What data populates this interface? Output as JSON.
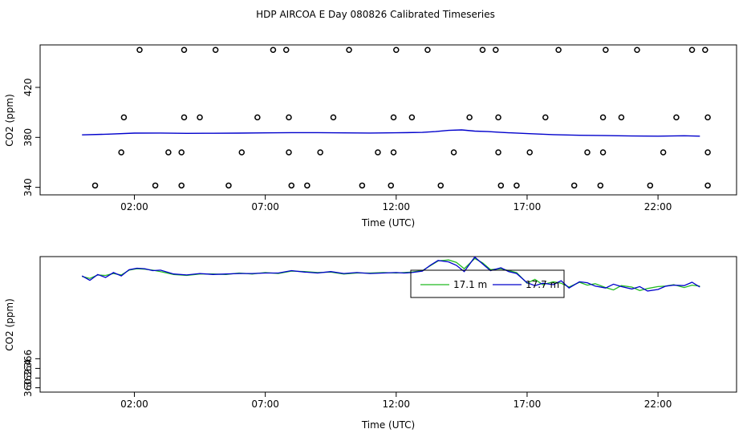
{
  "title": "HDP AIRCOA E  Day 080826  Calibrated Timeseries",
  "colors": {
    "green": "#22bb22",
    "blue": "#0000cc",
    "points": "#000000"
  },
  "chart_data": [
    {
      "type": "scatter",
      "xlabel": "Time (UTC)",
      "ylabel": "CO2 (ppm)",
      "x_unit": "hours UTC",
      "xlim": [
        -1.6,
        25.0
      ],
      "ylim": [
        334,
        454
      ],
      "xticks": [
        {
          "v": 2,
          "label": "02:00"
        },
        {
          "v": 7,
          "label": "07:00"
        },
        {
          "v": 12,
          "label": "12:00"
        },
        {
          "v": 17,
          "label": "17:00"
        },
        {
          "v": 22,
          "label": "22:00"
        }
      ],
      "yticks": [
        {
          "v": 340,
          "label": "340"
        },
        {
          "v": 380,
          "label": "380"
        },
        {
          "v": 420,
          "label": "420"
        }
      ],
      "grid": false,
      "line_series": {
        "name": "",
        "color": "#0000cc",
        "x": [
          0,
          1,
          2,
          3,
          4,
          5,
          6,
          7,
          8,
          9,
          10,
          11,
          12,
          13,
          13.5,
          14,
          14.5,
          15,
          15.5,
          16,
          17,
          18,
          19,
          20,
          21,
          22,
          23,
          23.6
        ],
        "y": [
          382,
          382.6,
          383.4,
          383.5,
          383.2,
          383.3,
          383.4,
          383.6,
          383.8,
          383.8,
          383.6,
          383.5,
          383.7,
          384,
          384.6,
          385.6,
          386,
          385,
          384.6,
          384,
          383,
          382.2,
          381.7,
          381.4,
          381.1,
          381,
          381.3,
          381
        ]
      },
      "cal_points": [
        {
          "x": 0.5,
          "y": 341.5
        },
        {
          "x": 1.5,
          "y": 368
        },
        {
          "x": 1.6,
          "y": 396
        },
        {
          "x": 2.2,
          "y": 450
        },
        {
          "x": 2.8,
          "y": 341.5
        },
        {
          "x": 3.3,
          "y": 368
        },
        {
          "x": 3.8,
          "y": 341.5
        },
        {
          "x": 3.8,
          "y": 368
        },
        {
          "x": 3.9,
          "y": 396
        },
        {
          "x": 3.9,
          "y": 450
        },
        {
          "x": 4.5,
          "y": 396
        },
        {
          "x": 5.1,
          "y": 450
        },
        {
          "x": 5.6,
          "y": 341.5
        },
        {
          "x": 6.1,
          "y": 368
        },
        {
          "x": 6.7,
          "y": 396
        },
        {
          "x": 7.3,
          "y": 450
        },
        {
          "x": 7.8,
          "y": 450
        },
        {
          "x": 7.9,
          "y": 396
        },
        {
          "x": 7.9,
          "y": 368
        },
        {
          "x": 8.0,
          "y": 341.5
        },
        {
          "x": 8.6,
          "y": 341.5
        },
        {
          "x": 9.1,
          "y": 368
        },
        {
          "x": 9.6,
          "y": 396
        },
        {
          "x": 10.2,
          "y": 450
        },
        {
          "x": 10.7,
          "y": 341.5
        },
        {
          "x": 11.3,
          "y": 368
        },
        {
          "x": 11.8,
          "y": 341.5
        },
        {
          "x": 11.9,
          "y": 368
        },
        {
          "x": 11.9,
          "y": 396
        },
        {
          "x": 12.0,
          "y": 450
        },
        {
          "x": 12.6,
          "y": 396
        },
        {
          "x": 13.2,
          "y": 450
        },
        {
          "x": 13.7,
          "y": 341.5
        },
        {
          "x": 14.2,
          "y": 368
        },
        {
          "x": 14.8,
          "y": 396
        },
        {
          "x": 15.3,
          "y": 450
        },
        {
          "x": 15.8,
          "y": 450
        },
        {
          "x": 15.9,
          "y": 396
        },
        {
          "x": 15.9,
          "y": 368
        },
        {
          "x": 16.0,
          "y": 341.5
        },
        {
          "x": 16.6,
          "y": 341.5
        },
        {
          "x": 17.1,
          "y": 368
        },
        {
          "x": 17.7,
          "y": 396
        },
        {
          "x": 18.2,
          "y": 450
        },
        {
          "x": 18.8,
          "y": 341.5
        },
        {
          "x": 19.3,
          "y": 368
        },
        {
          "x": 19.8,
          "y": 341.5
        },
        {
          "x": 19.9,
          "y": 368
        },
        {
          "x": 19.9,
          "y": 396
        },
        {
          "x": 20.0,
          "y": 450
        },
        {
          "x": 20.6,
          "y": 396
        },
        {
          "x": 21.2,
          "y": 450
        },
        {
          "x": 21.7,
          "y": 341.5
        },
        {
          "x": 22.2,
          "y": 368
        },
        {
          "x": 22.7,
          "y": 396
        },
        {
          "x": 23.3,
          "y": 450
        },
        {
          "x": 23.8,
          "y": 450
        },
        {
          "x": 23.9,
          "y": 396
        },
        {
          "x": 23.9,
          "y": 368
        },
        {
          "x": 23.9,
          "y": 341.5
        }
      ]
    },
    {
      "type": "line",
      "xlabel": "Time (UTC)",
      "ylabel": "CO2 (ppm)",
      "x_unit": "hours UTC",
      "xlim": [
        -1.6,
        25.0
      ],
      "ylim": [
        359.1,
        387.1
      ],
      "xticks": [
        {
          "v": 2,
          "label": "02:00"
        },
        {
          "v": 7,
          "label": "07:00"
        },
        {
          "v": 12,
          "label": "12:00"
        },
        {
          "v": 17,
          "label": "17:00"
        },
        {
          "v": 22,
          "label": "22:00"
        }
      ],
      "yticks": [
        {
          "v": 360,
          "label": "360"
        },
        {
          "v": 362,
          "label": "362"
        },
        {
          "v": 364,
          "label": "364"
        },
        {
          "v": 366,
          "label": "366"
        }
      ],
      "grid": false,
      "legend": {
        "placement": "top-center"
      },
      "series": [
        {
          "name": "17.1 m",
          "color": "#22bb22",
          "x": [
            0,
            0.3,
            0.6,
            0.9,
            1.2,
            1.5,
            1.8,
            2.1,
            2.4,
            2.7,
            3,
            3.5,
            4,
            4.5,
            5,
            5.5,
            6,
            6.5,
            7,
            7.5,
            8,
            8.5,
            9,
            9.5,
            10,
            10.5,
            11,
            11.5,
            12,
            12.3,
            12.6,
            13,
            13.3,
            13.6,
            14,
            14.3,
            14.6,
            15,
            15.3,
            15.6,
            16,
            16.3,
            16.6,
            17,
            17.3,
            17.6,
            18,
            18.3,
            18.6,
            19,
            19.3,
            19.6,
            20,
            20.3,
            20.6,
            21,
            21.3,
            21.6,
            22,
            22.3,
            22.6,
            23,
            23.3,
            23.6
          ],
          "y": [
            383,
            382.6,
            383.3,
            383.2,
            383.6,
            383.3,
            384.3,
            384.6,
            384.5,
            384.3,
            384,
            383.4,
            383.2,
            383.5,
            383.5,
            383.4,
            383.7,
            383.5,
            383.8,
            383.6,
            384.1,
            384,
            383.8,
            383.9,
            383.5,
            383.7,
            383.7,
            383.8,
            383.7,
            383.8,
            383.9,
            384.2,
            385.2,
            386.2,
            386.4,
            385.9,
            384.6,
            386.7,
            385.8,
            384.4,
            384.6,
            384.2,
            383.8,
            381.6,
            382.4,
            381.3,
            381.9,
            381.6,
            380.8,
            381.8,
            381.2,
            381.5,
            380.7,
            380.2,
            381.1,
            380.8,
            380.1,
            380.5,
            380.9,
            381,
            381.3,
            380.7,
            381.2,
            381.0
          ]
        },
        {
          "name": "17.7 m",
          "color": "#0000cc",
          "x": [
            0,
            0.3,
            0.6,
            0.9,
            1.2,
            1.5,
            1.8,
            2.1,
            2.4,
            2.7,
            3,
            3.5,
            4,
            4.5,
            5,
            5.5,
            6,
            6.5,
            7,
            7.5,
            8,
            8.5,
            9,
            9.5,
            10,
            10.5,
            11,
            11.5,
            12,
            12.3,
            12.6,
            13,
            13.3,
            13.6,
            14,
            14.3,
            14.6,
            15,
            15.3,
            15.6,
            16,
            16.3,
            16.6,
            17,
            17.3,
            17.6,
            18,
            18.3,
            18.6,
            19,
            19.3,
            19.6,
            20,
            20.3,
            20.6,
            21,
            21.3,
            21.6,
            22,
            22.3,
            22.6,
            23,
            23.3,
            23.6
          ],
          "y": [
            383.1,
            382.2,
            383.4,
            382.8,
            383.8,
            383.1,
            384.4,
            384.7,
            384.6,
            384.2,
            384.3,
            383.5,
            383.3,
            383.6,
            383.4,
            383.5,
            383.6,
            383.6,
            383.7,
            383.7,
            384.2,
            383.9,
            383.7,
            384,
            383.6,
            383.8,
            383.6,
            383.7,
            383.8,
            383.7,
            383.8,
            384.1,
            385.3,
            386.3,
            386,
            385.3,
            384,
            387,
            385.6,
            384.2,
            384.8,
            384,
            383.6,
            381.7,
            381.1,
            381.6,
            381.3,
            382.1,
            380.6,
            381.9,
            381.7,
            381.0,
            380.6,
            381.4,
            380.9,
            380.4,
            380.9,
            380.0,
            380.3,
            381.0,
            381.2,
            381.1,
            381.8,
            380.8
          ]
        }
      ]
    }
  ]
}
